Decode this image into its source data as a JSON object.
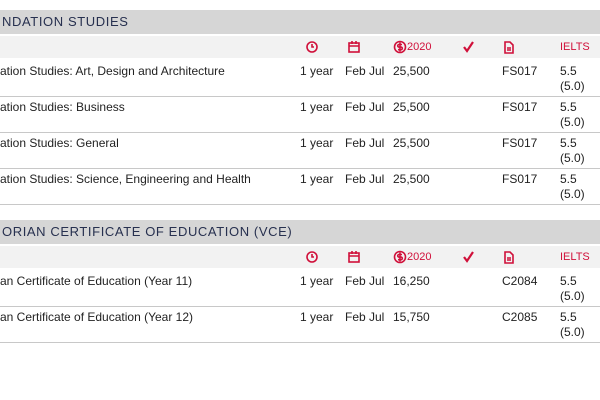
{
  "sections": [
    {
      "title": "NDATION STUDIES",
      "fee_year": "2020",
      "ielts": "IELTS",
      "rows": [
        {
          "name": "ation Studies: Art, Design and Architecture",
          "duration": "1 year",
          "intake": "Feb Jul",
          "fee": "25,500",
          "code": "FS017",
          "ielts": "5.5",
          "ielts_sub": "(5.0)"
        },
        {
          "name": "ation Studies: Business",
          "duration": "1 year",
          "intake": "Feb Jul",
          "fee": "25,500",
          "code": "FS017",
          "ielts": "5.5",
          "ielts_sub": "(5.0)"
        },
        {
          "name": "ation Studies: General",
          "duration": "1 year",
          "intake": "Feb Jul",
          "fee": "25,500",
          "code": "FS017",
          "ielts": "5.5",
          "ielts_sub": "(5.0)"
        },
        {
          "name": "ation Studies: Science, Engineering and Health",
          "duration": "1 year",
          "intake": "Feb Jul",
          "fee": "25,500",
          "code": "FS017",
          "ielts": "5.5",
          "ielts_sub": "(5.0)"
        }
      ]
    },
    {
      "title": "ORIAN CERTIFICATE OF EDUCATION (VCE)",
      "fee_year": "2020",
      "ielts": "IELTS",
      "rows": [
        {
          "name": "an Certificate of Education (Year 11)",
          "duration": "1 year",
          "intake": "Feb Jul",
          "fee": "16,250",
          "code": "C2084",
          "ielts": "5.5",
          "ielts_sub": "(5.0)"
        },
        {
          "name": "an Certificate of Education (Year 12)",
          "duration": "1 year",
          "intake": "Feb Jul",
          "fee": "15,750",
          "code": "C2085",
          "ielts": "5.5",
          "ielts_sub": "(5.0)"
        }
      ]
    }
  ]
}
